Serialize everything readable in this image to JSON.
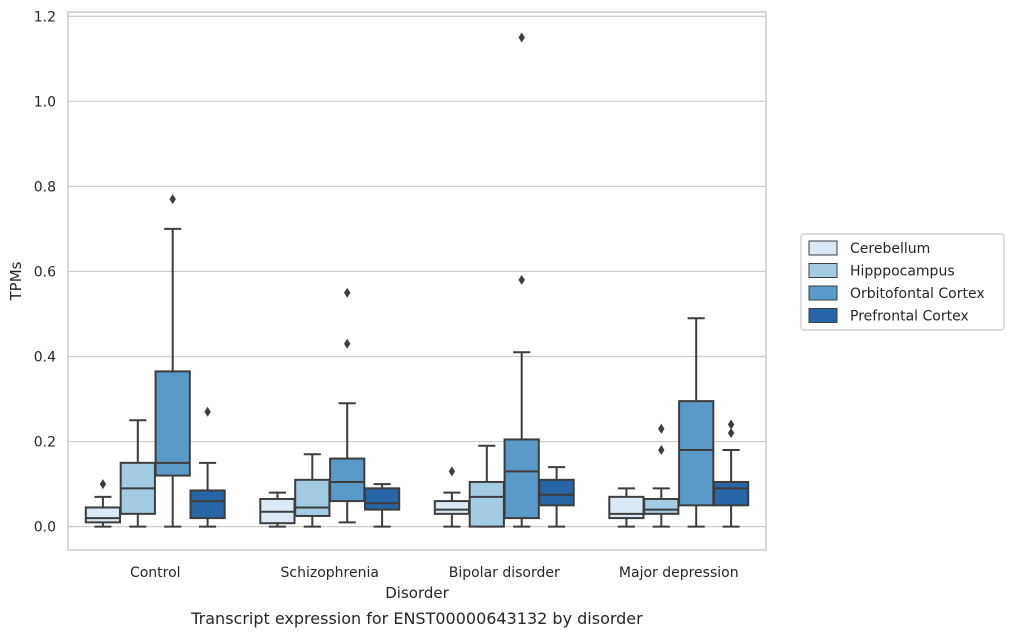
{
  "chart_data": {
    "type": "boxplot",
    "title": "",
    "caption": "Transcript expression for ENST00000643132 by disorder",
    "xlabel": "Disorder",
    "ylabel": "TPMs",
    "ylim": [
      -0.055,
      1.21
    ],
    "yticks": [
      0.0,
      0.2,
      0.4,
      0.6,
      0.8,
      1.0,
      1.2
    ],
    "ytick_labels": [
      "0.0",
      "0.2",
      "0.4",
      "0.6",
      "0.8",
      "1.0",
      "1.2"
    ],
    "grid": "horizontal",
    "legend_position": "right",
    "categories": [
      "Control",
      "Schizophrenia",
      "Bipolar disorder",
      "Major depression"
    ],
    "series": [
      {
        "name": "Cerebellum",
        "color": "#dbe9f6",
        "boxes": [
          {
            "whisker_low": 0.0,
            "q1": 0.01,
            "median": 0.02,
            "q3": 0.045,
            "whisker_high": 0.07,
            "outliers": [
              0.1
            ]
          },
          {
            "whisker_low": 0.0,
            "q1": 0.008,
            "median": 0.035,
            "q3": 0.065,
            "whisker_high": 0.08,
            "outliers": []
          },
          {
            "whisker_low": 0.0,
            "q1": 0.03,
            "median": 0.04,
            "q3": 0.06,
            "whisker_high": 0.08,
            "outliers": [
              0.13
            ]
          },
          {
            "whisker_low": 0.0,
            "q1": 0.02,
            "median": 0.03,
            "q3": 0.07,
            "whisker_high": 0.09,
            "outliers": []
          }
        ]
      },
      {
        "name": "Hipppocampus",
        "color": "#a3cbe2",
        "boxes": [
          {
            "whisker_low": 0.0,
            "q1": 0.03,
            "median": 0.09,
            "q3": 0.15,
            "whisker_high": 0.25,
            "outliers": []
          },
          {
            "whisker_low": 0.0,
            "q1": 0.025,
            "median": 0.045,
            "q3": 0.11,
            "whisker_high": 0.17,
            "outliers": []
          },
          {
            "whisker_low": 0.0,
            "q1": 0.0,
            "median": 0.07,
            "q3": 0.105,
            "whisker_high": 0.19,
            "outliers": []
          },
          {
            "whisker_low": 0.0,
            "q1": 0.03,
            "median": 0.04,
            "q3": 0.065,
            "whisker_high": 0.09,
            "outliers": [
              0.18,
              0.23
            ]
          }
        ]
      },
      {
        "name": "Orbitofontal Cortex",
        "color": "#5a9ac8",
        "boxes": [
          {
            "whisker_low": 0.0,
            "q1": 0.12,
            "median": 0.15,
            "q3": 0.365,
            "whisker_high": 0.7,
            "outliers": [
              0.77
            ]
          },
          {
            "whisker_low": 0.01,
            "q1": 0.06,
            "median": 0.105,
            "q3": 0.16,
            "whisker_high": 0.29,
            "outliers": [
              0.43,
              0.55
            ]
          },
          {
            "whisker_low": 0.0,
            "q1": 0.02,
            "median": 0.13,
            "q3": 0.205,
            "whisker_high": 0.41,
            "outliers": [
              0.58,
              1.15
            ]
          },
          {
            "whisker_low": 0.0,
            "q1": 0.05,
            "median": 0.18,
            "q3": 0.295,
            "whisker_high": 0.49,
            "outliers": []
          }
        ]
      },
      {
        "name": "Prefrontal Cortex",
        "color": "#2666a7",
        "boxes": [
          {
            "whisker_low": 0.0,
            "q1": 0.02,
            "median": 0.06,
            "q3": 0.085,
            "whisker_high": 0.15,
            "outliers": [
              0.27
            ]
          },
          {
            "whisker_low": 0.0,
            "q1": 0.04,
            "median": 0.055,
            "q3": 0.09,
            "whisker_high": 0.1,
            "outliers": []
          },
          {
            "whisker_low": 0.0,
            "q1": 0.05,
            "median": 0.075,
            "q3": 0.11,
            "whisker_high": 0.14,
            "outliers": []
          },
          {
            "whisker_low": 0.0,
            "q1": 0.05,
            "median": 0.09,
            "q3": 0.105,
            "whisker_high": 0.18,
            "outliers": [
              0.22,
              0.24
            ]
          }
        ]
      }
    ]
  }
}
